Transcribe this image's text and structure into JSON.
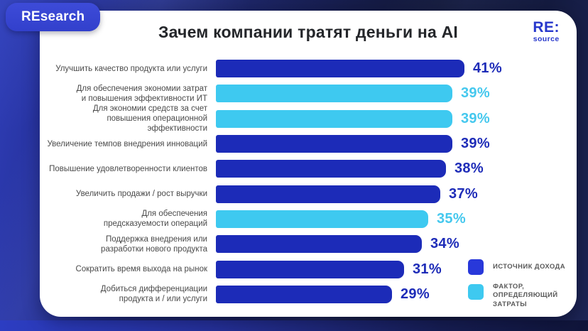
{
  "badge": {
    "label": "REsearch"
  },
  "logo": {
    "line1": "RE:",
    "line2": "source"
  },
  "title": "Зачем компании тратят деньги на AI",
  "colors": {
    "revenue_bar": "#1C2BB8",
    "cost_bar": "#3EC9F0",
    "revenue_text": "#1E2CB8",
    "cost_text": "#45C8EE",
    "legend_revenue": "#2838DA",
    "legend_cost": "#3EC9F0",
    "badge_bg": "#3D4BD8",
    "logo_blue": "#2737CC",
    "card_bg": "#FFFFFF",
    "background_navy": "#161D48"
  },
  "legend": [
    {
      "label": "ИСТОЧНИК ДОХОДА",
      "group": "revenue"
    },
    {
      "label": "ФАКТОР,\nОПРЕДЕЛЯЮЩИЙ\nЗАТРАТЫ",
      "group": "cost"
    }
  ],
  "chart_data": {
    "type": "bar",
    "orientation": "horizontal",
    "title": "Зачем компании тратят деньги на AI",
    "unit": "%",
    "max_value": 41,
    "value_axis_range": [
      0,
      41
    ],
    "grid": false,
    "legend_position": "bottom-right",
    "groups": {
      "revenue": "ИСТОЧНИК ДОХОДА",
      "cost": "ФАКТОР, ОПРЕДЕЛЯЮЩИЙ ЗАТРАТЫ"
    },
    "bars": [
      {
        "label": "Улучшить качество продукта или услуги",
        "value": 41,
        "group": "revenue"
      },
      {
        "label": "Для обеспечения экономии затрат\nи повышения эффективности ИТ",
        "value": 39,
        "group": "cost"
      },
      {
        "label": "Для экономии средств за счет\nповышения операционной эффективности",
        "value": 39,
        "group": "cost"
      },
      {
        "label": "Увеличение темпов внедрения инноваций",
        "value": 39,
        "group": "revenue"
      },
      {
        "label": "Повышение удовлетворенности клиентов",
        "value": 38,
        "group": "revenue"
      },
      {
        "label": "Увеличить продажи / рост выручки",
        "value": 37,
        "group": "revenue"
      },
      {
        "label": "Для обеспечения\nпредсказуемости операций",
        "value": 35,
        "group": "cost"
      },
      {
        "label": "Поддержка внедрения или\nразработки нового продукта",
        "value": 34,
        "group": "revenue"
      },
      {
        "label": "Сократить время выхода на рынок",
        "value": 31,
        "group": "revenue"
      },
      {
        "label": "Добиться дифференциации\nпродукта и / или услуги",
        "value": 29,
        "group": "revenue"
      }
    ]
  }
}
